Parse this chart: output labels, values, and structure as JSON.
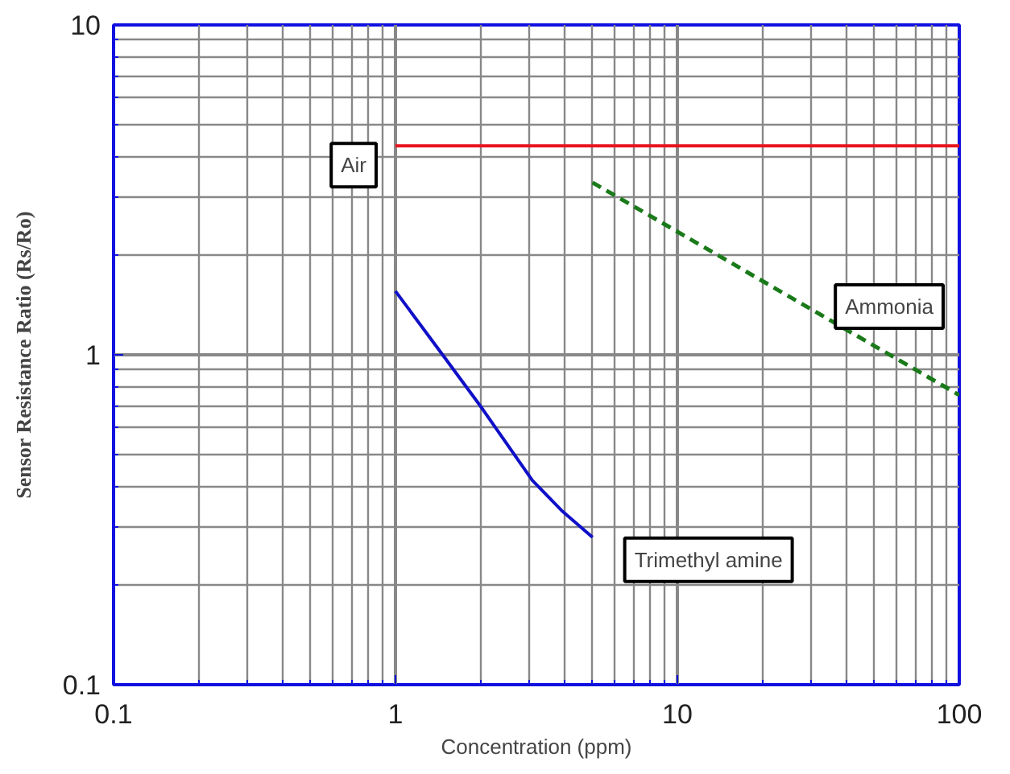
{
  "chart_data": {
    "type": "line",
    "xlabel": "Concentration (ppm)",
    "ylabel": "Sensor Resistance Ratio (Rs/Ro)",
    "log": "xy",
    "grid": true,
    "xlim": [
      0.1,
      100
    ],
    "ylim": [
      0.1,
      10
    ],
    "xticks": [
      0.1,
      1,
      10,
      100
    ],
    "yticks": [
      0.1,
      1,
      10
    ],
    "series": [
      {
        "name": "Air",
        "color": "#e8141e",
        "line_style": "solid",
        "x": [
          1,
          100
        ],
        "values": [
          4.3,
          4.3
        ]
      },
      {
        "name": "Ammonia",
        "color": "#1a7a1a",
        "line_style": "dashed",
        "x": [
          5,
          100
        ],
        "values": [
          3.33,
          0.755
        ]
      },
      {
        "name": "Trimethyl amine",
        "color": "#1010c8",
        "line_style": "solid",
        "x": [
          1,
          1.47,
          2,
          3.06,
          3.89,
          5
        ],
        "values": [
          1.56,
          1.0,
          0.7,
          0.416,
          0.337,
          0.28
        ]
      }
    ]
  }
}
